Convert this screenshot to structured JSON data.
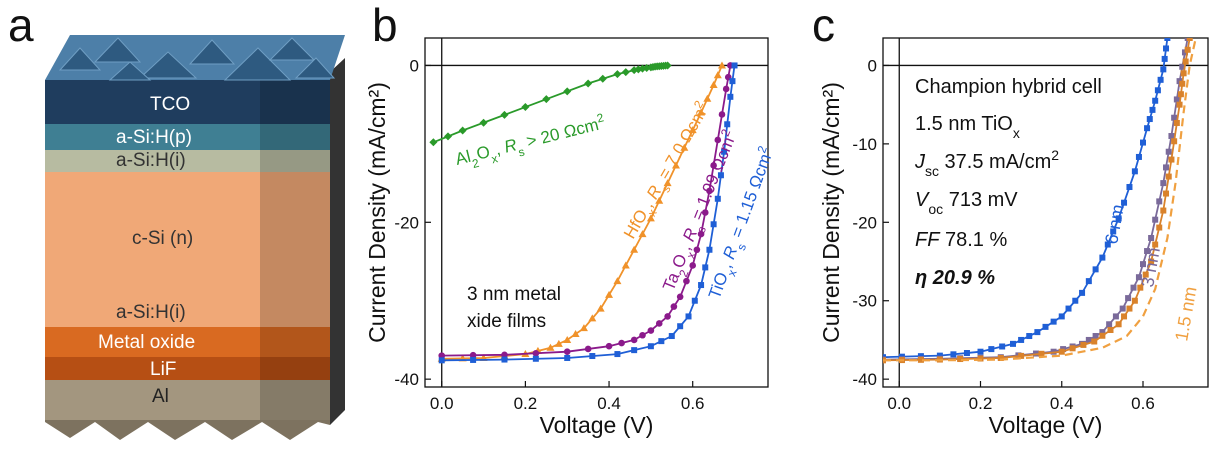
{
  "figure": {
    "panel_a_label": "a",
    "panel_b_label": "b",
    "panel_c_label": "c"
  },
  "stack_layers": {
    "tco": "TCO",
    "asi_p": "a-Si:H(p)",
    "asi_i_top": "a-Si:H(i)",
    "csi": "c-Si (n)",
    "asi_i_bottom": "a-Si:H(i)",
    "metal_oxide": "Metal oxide",
    "lif": "LiF",
    "al": "Al",
    "colors": {
      "tco": "#1f3d5e",
      "asi_p": "#3f7f93",
      "asi_i": "#b7bba1",
      "csi": "#f0a877",
      "asi_i_bottom": "#f0a877",
      "metal_oxide": "#d96a21",
      "lif": "#b64f14",
      "al": "#a3967f"
    }
  },
  "chart_data": [
    {
      "type": "line",
      "panel": "b",
      "xlabel": "Voltage (V)",
      "ylabel": "Current Density (mA/cm²)",
      "xlim": [
        -0.04,
        0.78
      ],
      "ylim": [
        -41,
        3.5
      ],
      "xticks": [
        0.0,
        0.2,
        0.4,
        0.6
      ],
      "xtick_labels": [
        "0.0",
        "0.2",
        "0.4",
        "0.6"
      ],
      "yticks": [
        0,
        -20,
        -40
      ],
      "ytick_labels": [
        "0",
        "-20",
        "-40"
      ],
      "annotation": "3 nm metal oxide films",
      "series": [
        {
          "name": "Al2Ox, Rs > 20 Ωcm²",
          "color": "#2a9a2a",
          "marker": "diamond",
          "label_parts": [
            "Al",
            "2",
            "O",
            "x",
            ", ",
            "R",
            "s",
            " > 20 Ωcm",
            "2"
          ],
          "x": [
            -0.02,
            0.05,
            0.15,
            0.25,
            0.35,
            0.42,
            0.46,
            0.48,
            0.5,
            0.51,
            0.52,
            0.53,
            0.54
          ],
          "y": [
            -9.8,
            -8.3,
            -6.3,
            -4.3,
            -2.3,
            -1.1,
            -0.6,
            -0.4,
            -0.25,
            -0.15,
            -0.1,
            -0.05,
            0.0
          ]
        },
        {
          "name": "HfOx, Rs = 7.0 Ωcm²",
          "color": "#f0922a",
          "marker": "triangle",
          "label_parts": [
            "HfO",
            "x",
            ", ",
            "R",
            "s",
            " = 7.0 Ωcm",
            "2"
          ],
          "x": [
            0.0,
            0.1,
            0.2,
            0.26,
            0.3,
            0.34,
            0.38,
            0.42,
            0.46,
            0.5,
            0.54,
            0.58,
            0.62,
            0.65,
            0.67
          ],
          "y": [
            -37.4,
            -37.3,
            -36.8,
            -36.0,
            -35.0,
            -33.5,
            -31.0,
            -27.5,
            -23.5,
            -19.5,
            -15.0,
            -10.5,
            -6.0,
            -2.5,
            0.0
          ]
        },
        {
          "name": "Ta2Ox, Rs = 1.99 Ωcm²",
          "color": "#8b1a8b",
          "marker": "circle",
          "label_parts": [
            "Ta",
            "2",
            "O",
            "x",
            ", ",
            "R",
            "s",
            " = 1.99 Ωcm",
            "2"
          ],
          "x": [
            0.0,
            0.15,
            0.3,
            0.4,
            0.46,
            0.5,
            0.54,
            0.57,
            0.6,
            0.62,
            0.64,
            0.66,
            0.68,
            0.69
          ],
          "y": [
            -37.0,
            -36.9,
            -36.5,
            -35.8,
            -35.0,
            -33.8,
            -32.0,
            -29.5,
            -25.5,
            -21.5,
            -16.0,
            -9.5,
            -3.0,
            0.0
          ]
        },
        {
          "name": "TiOx, Rs = 1.15 Ωcm²",
          "color": "#1f5fd6",
          "marker": "square",
          "label_parts": [
            "TiO",
            "x",
            ", ",
            "R",
            "s",
            " = 1.15 Ωcm",
            "2"
          ],
          "x": [
            0.0,
            0.15,
            0.3,
            0.42,
            0.5,
            0.55,
            0.59,
            0.62,
            0.64,
            0.66,
            0.675,
            0.69,
            0.7
          ],
          "y": [
            -37.6,
            -37.5,
            -37.3,
            -36.8,
            -35.8,
            -34.5,
            -32.0,
            -28.0,
            -23.5,
            -17.0,
            -11.0,
            -4.0,
            0.0
          ]
        }
      ]
    },
    {
      "type": "line",
      "panel": "c",
      "xlabel": "Voltage (V)",
      "ylabel": "Current Density (mA/cm²)",
      "xlim": [
        -0.04,
        0.76
      ],
      "ylim": [
        -41,
        3.5
      ],
      "xticks": [
        0.0,
        0.2,
        0.4,
        0.6
      ],
      "xtick_labels": [
        "0.0",
        "0.2",
        "0.4",
        "0.6"
      ],
      "yticks": [
        0,
        -10,
        -20,
        -30,
        -40
      ],
      "ytick_labels": [
        "0",
        "-10",
        "-20",
        "-30",
        "-40"
      ],
      "info_box": {
        "line1": "Champion hybrid cell",
        "line2": "1.5 nm TiOx",
        "line3": "Jsc 37.5 mA/cm²",
        "line4": "Voc 713 mV",
        "line5": "FF 78.1 %",
        "line6": "η 20.9 %"
      },
      "series": [
        {
          "name": "6 nm",
          "color": "#1f5fd6",
          "marker": "square",
          "x": [
            -0.04,
            0.1,
            0.2,
            0.28,
            0.34,
            0.4,
            0.45,
            0.5,
            0.54,
            0.58,
            0.61,
            0.63,
            0.65,
            0.66
          ],
          "y": [
            -37.2,
            -37.0,
            -36.5,
            -35.5,
            -34.0,
            -32.0,
            -29.0,
            -24.5,
            -19.5,
            -13.5,
            -8.0,
            -4.5,
            -0.5,
            3.5
          ]
        },
        {
          "name": "3 nm",
          "color": "#7a6a9a",
          "marker": "square",
          "x": [
            -0.04,
            0.1,
            0.25,
            0.38,
            0.45,
            0.5,
            0.55,
            0.59,
            0.62,
            0.65,
            0.67,
            0.69,
            0.71
          ],
          "y": [
            -37.5,
            -37.4,
            -37.2,
            -36.5,
            -35.5,
            -34.0,
            -31.0,
            -27.0,
            -22.0,
            -15.0,
            -9.0,
            -2.0,
            3.5
          ]
        },
        {
          "name": "orange markers",
          "color": "#d9822b",
          "marker": "square",
          "x": [
            -0.04,
            0.1,
            0.25,
            0.4,
            0.48,
            0.54,
            0.58,
            0.62,
            0.65,
            0.67,
            0.69,
            0.7,
            0.715
          ],
          "y": [
            -37.6,
            -37.5,
            -37.3,
            -36.5,
            -35.2,
            -33.0,
            -30.0,
            -25.0,
            -18.5,
            -12.0,
            -5.0,
            -1.0,
            3.5
          ]
        },
        {
          "name": "1.5 nm",
          "color": "#f0a040",
          "marker": "dashed",
          "x": [
            -0.04,
            0.1,
            0.25,
            0.4,
            0.5,
            0.56,
            0.6,
            0.63,
            0.66,
            0.68,
            0.7,
            0.715,
            0.73
          ],
          "y": [
            -37.6,
            -37.6,
            -37.5,
            -37.0,
            -36.0,
            -34.5,
            -32.0,
            -28.5,
            -22.0,
            -15.0,
            -6.0,
            0.0,
            3.5
          ]
        }
      ]
    }
  ]
}
